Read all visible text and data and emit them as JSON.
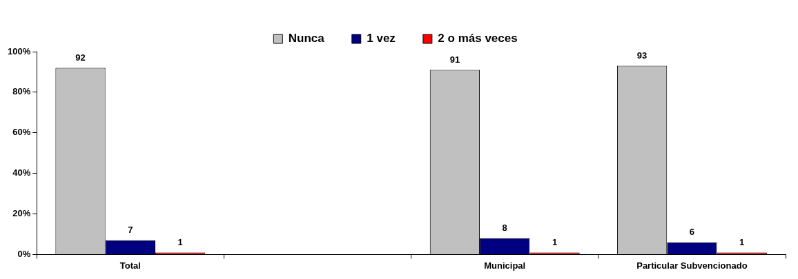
{
  "chart_data": {
    "type": "bar",
    "categories": [
      "Total",
      null,
      "Municipal",
      "Particular Subvencionado"
    ],
    "series": [
      {
        "name": "Nunca",
        "color": "#c0c0c0",
        "values": [
          92,
          null,
          91,
          93
        ]
      },
      {
        "name": "1 vez",
        "color": "#000080",
        "values": [
          7,
          null,
          8,
          6
        ]
      },
      {
        "name": "2 o más veces",
        "color": "#ff0000",
        "values": [
          1,
          null,
          1,
          1
        ]
      }
    ],
    "ylim": [
      0,
      100
    ],
    "yticks": [
      {
        "value": 0,
        "label": "0%"
      },
      {
        "value": 20,
        "label": "20%"
      },
      {
        "value": 40,
        "label": "40%"
      },
      {
        "value": 60,
        "label": "60%"
      },
      {
        "value": 80,
        "label": "80%"
      },
      {
        "value": 100,
        "label": "100%"
      }
    ],
    "grid": false,
    "legend": "top",
    "data_labels": true
  }
}
